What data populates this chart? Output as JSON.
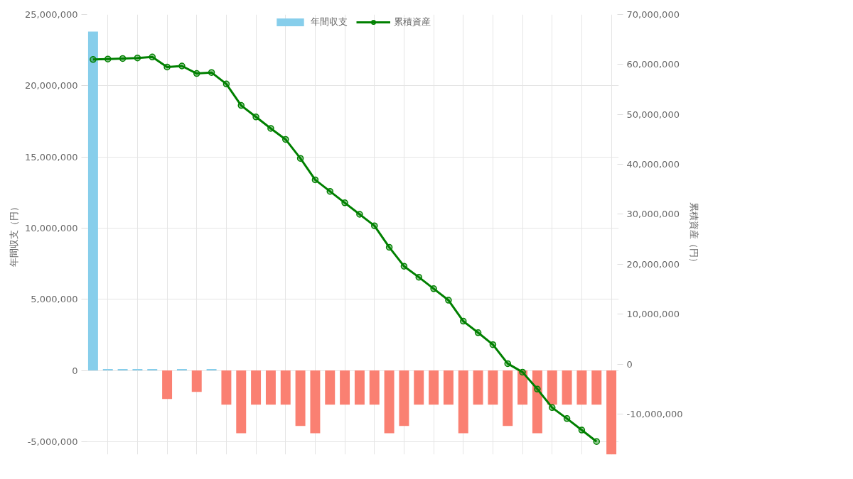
{
  "chart_data": {
    "type": "bar",
    "categories": [
      null,
      null,
      null,
      null,
      null,
      null,
      null,
      null,
      null,
      null,
      null,
      null,
      null,
      null,
      null,
      null,
      null,
      null,
      null,
      null,
      null,
      null,
      null,
      null,
      null,
      null,
      null,
      null,
      null,
      null,
      null,
      null,
      null,
      null,
      null,
      null
    ],
    "ylabel": "年間収支（円）",
    "y2label": "累積資産（円）",
    "ylim": [
      -5900000,
      25000000
    ],
    "yticks": [
      {
        "value": -5000000,
        "label": "-5,000,000"
      },
      0,
      {
        "value": 5000000,
        "label": "5,000,000"
      },
      {
        "value": 10000000,
        "label": "10,000,000"
      },
      {
        "value": 15000000,
        "label": "15,000,000"
      },
      {
        "value": 20000000,
        "label": "20,000,000"
      },
      {
        "value": 25000000,
        "label": "25,000,000"
      }
    ],
    "y2lim": [
      -18100000,
      70000000
    ],
    "y2ticks": [
      {
        "value": -10000000,
        "label": "-10,000,000"
      },
      0,
      {
        "value": 10000000,
        "label": "10,000,000"
      },
      {
        "value": 20000000,
        "label": "20,000,000"
      },
      {
        "value": 30000000,
        "label": "30,000,000"
      },
      {
        "value": 40000000,
        "label": "40,000,000"
      },
      {
        "value": 50000000,
        "label": "50,000,000"
      },
      {
        "value": 60000000,
        "label": "60,000,000"
      },
      {
        "value": 70000000,
        "label": "70,000,000"
      }
    ],
    "series": [
      {
        "name": "年間収支",
        "colors": [
          "#87ceeb",
          "#87ceeb",
          "#87ceeb",
          "#87ceeb",
          "#87ceeb",
          "#fa8072",
          "#87ceeb",
          "#fa8072",
          "#87ceeb",
          "#fa8072",
          "#fa8072",
          "#fa8072",
          "#fa8072",
          "#fa8072",
          "#fa8072",
          "#fa8072",
          "#fa8072",
          "#fa8072",
          "#fa8072",
          "#fa8072",
          "#fa8072",
          "#fa8072",
          "#fa8072",
          "#fa8072",
          "#fa8072",
          "#fa8072",
          "#fa8072",
          "#fa8072",
          "#fa8072",
          "#fa8072",
          "#fa8072",
          "#fa8072",
          "#fa8072",
          "#fa8072",
          "#fa8072",
          "#fa8072"
        ],
        "values": [
          23800000,
          100000,
          100000,
          100000,
          100000,
          -2000000,
          100000,
          -1500000,
          100000,
          -2400000,
          -4400000,
          -2400000,
          -2400000,
          -2400000,
          -3900000,
          -4400000,
          -2400000,
          -2400000,
          -2400000,
          -2400000,
          -4400000,
          -3900000,
          -2400000,
          -2400000,
          -2400000,
          -4400000,
          -2400000,
          -2400000,
          -3900000,
          -2400000,
          -4400000,
          -2400000,
          -2400000,
          -2400000,
          -2400000,
          -5900000
        ]
      },
      {
        "name": "累積資産",
        "type": "line",
        "axis": "y2",
        "color": "#008000",
        "values": [
          61000000,
          61100000,
          61200000,
          61300000,
          61500000,
          59500000,
          59700000,
          58200000,
          58400000,
          56100000,
          51800000,
          49500000,
          47200000,
          45000000,
          41200000,
          36900000,
          34600000,
          32300000,
          30000000,
          27700000,
          23400000,
          19600000,
          17400000,
          15100000,
          12800000,
          8600000,
          6300000,
          3900000,
          100000,
          -1600000,
          -5000000,
          -8700000,
          -10900000,
          -13200000,
          -15500000,
          null
        ]
      }
    ],
    "grid": true,
    "legend": "top",
    "marker": "circle",
    "line_style": "solid",
    "tick_labels": "y"
  }
}
